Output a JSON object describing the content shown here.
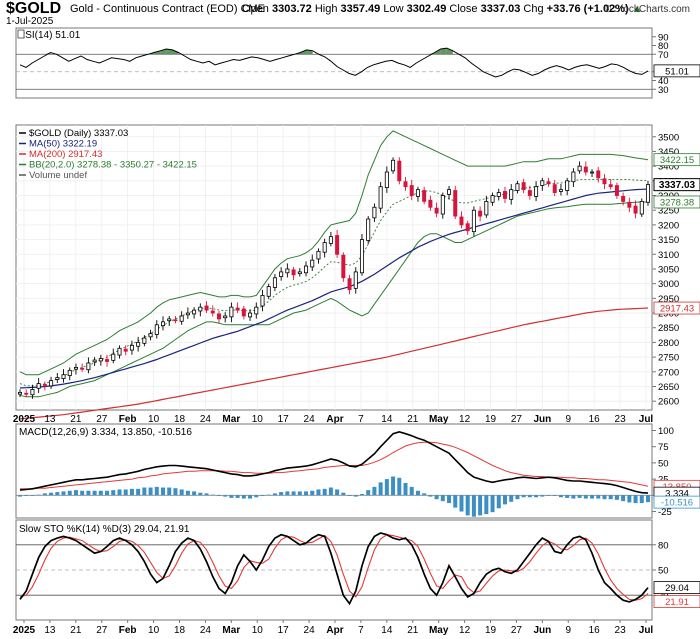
{
  "header": {
    "ticker": "$GOLD",
    "description": "Gold - Continuous Contract (EOD) CME",
    "date": "1-Jul-2025",
    "brand": "© StockCharts.com",
    "open_label": "Open",
    "open": "3303.72",
    "high_label": "High",
    "high": "3357.49",
    "low_label": "Low",
    "low": "3302.49",
    "close_label": "Close",
    "close": "3337.03",
    "chg_label": "Chg",
    "chg": "+33.76 (+1.02%)",
    "chg_arrow": "▲"
  },
  "colors": {
    "up_candle": "#000000",
    "down_candle": "#d8143c",
    "ma50": "#1a237e",
    "ma200": "#d32f2f",
    "bollinger": "#2e7d32",
    "macd_hist": "#3b8fc4",
    "stoch_k": "#000000",
    "stoch_d": "#e53935",
    "rsi_fill": "#3f7d3f"
  },
  "chart_data": [
    {
      "type": "line",
      "panel": "rsi",
      "title": "RSI(14) 51.01",
      "current": 51.01,
      "ylim": [
        20,
        100
      ],
      "levels": [
        70,
        30
      ],
      "tick_labels": [
        "90",
        "80",
        "70",
        "50",
        "40",
        "30"
      ],
      "values": [
        58,
        55,
        60,
        64,
        68,
        72,
        70,
        66,
        62,
        65,
        68,
        64,
        62,
        60,
        63,
        66,
        65,
        64,
        62,
        66,
        68,
        70,
        72,
        74,
        76,
        75,
        72,
        68,
        64,
        62,
        60,
        62,
        58,
        60,
        62,
        64,
        63,
        65,
        67,
        66,
        64,
        62,
        64,
        66,
        68,
        70,
        72,
        75,
        74,
        70,
        67,
        62,
        56,
        52,
        48,
        46,
        50,
        55,
        58,
        60,
        62,
        63,
        60,
        58,
        55,
        60,
        64,
        68,
        72,
        76,
        77,
        74,
        70,
        66,
        60,
        55,
        50,
        47,
        44,
        46,
        50,
        53,
        52,
        49,
        46,
        48,
        52,
        55,
        57,
        55,
        52,
        55,
        57,
        58,
        56,
        54,
        56,
        59,
        58,
        55,
        51,
        48,
        47,
        51.01
      ]
    },
    {
      "type": "line",
      "panel": "price",
      "title": "$GOLD (Daily) 3337.03",
      "legend": [
        "$GOLD (Daily) 3337.03",
        "MA(50) 3322.19",
        "MA(200) 2917.43",
        "BB(20,2.0) 3278.38 - 3350.27 - 3422.15",
        "Volume undef"
      ],
      "ylim": [
        2570,
        3540
      ],
      "y_tick_labels": [
        "3500",
        "3450",
        "3400",
        "3350",
        "3300",
        "3250",
        "3200",
        "3150",
        "3100",
        "3050",
        "3000",
        "2950",
        "2900",
        "2850",
        "2800",
        "2750",
        "2700",
        "2650",
        "2600"
      ],
      "badges": {
        "bb_upper": "3422.15",
        "close": "3337.03",
        "bb_lower": "3278.38",
        "ma200": "2917.43"
      },
      "close": [
        2630,
        2625,
        2640,
        2660,
        2655,
        2670,
        2680,
        2690,
        2705,
        2715,
        2710,
        2730,
        2740,
        2745,
        2735,
        2760,
        2780,
        2770,
        2790,
        2800,
        2815,
        2830,
        2860,
        2870,
        2880,
        2875,
        2890,
        2900,
        2910,
        2920,
        2910,
        2900,
        2880,
        2890,
        2920,
        2910,
        2890,
        2900,
        2920,
        2960,
        2990,
        3020,
        3040,
        3050,
        3030,
        3040,
        3060,
        3080,
        3110,
        3140,
        3160,
        3100,
        3020,
        2980,
        3040,
        3150,
        3220,
        3260,
        3330,
        3380,
        3420,
        3350,
        3330,
        3300,
        3320,
        3280,
        3260,
        3240,
        3300,
        3320,
        3230,
        3200,
        3180,
        3250,
        3230,
        3280,
        3300,
        3310,
        3290,
        3320,
        3340,
        3320,
        3300,
        3330,
        3350,
        3340,
        3310,
        3320,
        3350,
        3380,
        3400,
        3380,
        3380,
        3360,
        3340,
        3330,
        3300,
        3280,
        3260,
        3240,
        3280,
        3337
      ],
      "ma50": [
        2645,
        2646,
        2647,
        2648,
        2650,
        2652,
        2655,
        2658,
        2662,
        2666,
        2670,
        2675,
        2680,
        2686,
        2692,
        2698,
        2704,
        2710,
        2716,
        2722,
        2728,
        2735,
        2742,
        2750,
        2758,
        2766,
        2774,
        2782,
        2790,
        2798,
        2806,
        2814,
        2820,
        2826,
        2832,
        2838,
        2846,
        2854,
        2862,
        2870,
        2880,
        2890,
        2900,
        2910,
        2918,
        2926,
        2934,
        2942,
        2952,
        2962,
        2972,
        2978,
        2984,
        2990,
        2998,
        3008,
        3020,
        3032,
        3046,
        3060,
        3074,
        3088,
        3100,
        3112,
        3124,
        3134,
        3144,
        3152,
        3160,
        3168,
        3174,
        3180,
        3186,
        3192,
        3198,
        3204,
        3210,
        3216,
        3222,
        3228,
        3234,
        3240,
        3246,
        3252,
        3258,
        3264,
        3270,
        3276,
        3282,
        3288,
        3294,
        3300,
        3304,
        3308,
        3310,
        3312,
        3314,
        3316,
        3318,
        3320,
        3321,
        3322
      ],
      "ma200": [
        2540,
        2542,
        2544,
        2546,
        2548,
        2550,
        2552,
        2554,
        2557,
        2560,
        2563,
        2566,
        2569,
        2572,
        2575,
        2578,
        2581,
        2584,
        2587,
        2590,
        2594,
        2598,
        2602,
        2606,
        2610,
        2614,
        2618,
        2622,
        2626,
        2630,
        2634,
        2638,
        2642,
        2646,
        2650,
        2654,
        2658,
        2662,
        2666,
        2670,
        2674,
        2678,
        2682,
        2686,
        2690,
        2694,
        2698,
        2702,
        2706,
        2710,
        2714,
        2718,
        2722,
        2726,
        2730,
        2734,
        2738,
        2742,
        2746,
        2750,
        2755,
        2760,
        2765,
        2770,
        2775,
        2780,
        2785,
        2790,
        2795,
        2800,
        2805,
        2810,
        2815,
        2820,
        2825,
        2830,
        2835,
        2840,
        2845,
        2850,
        2855,
        2860,
        2864,
        2868,
        2872,
        2876,
        2880,
        2884,
        2888,
        2892,
        2896,
        2900,
        2903,
        2906,
        2908,
        2910,
        2912,
        2913,
        2914,
        2915,
        2916,
        2917
      ],
      "bb_upper": [
        2700,
        2690,
        2690,
        2690,
        2700,
        2710,
        2720,
        2730,
        2745,
        2760,
        2770,
        2780,
        2790,
        2800,
        2810,
        2825,
        2840,
        2850,
        2860,
        2870,
        2885,
        2900,
        2920,
        2935,
        2945,
        2950,
        2955,
        2960,
        2965,
        2970,
        2965,
        2960,
        2955,
        2955,
        2960,
        2960,
        2955,
        2955,
        2960,
        2990,
        3020,
        3050,
        3070,
        3085,
        3090,
        3095,
        3105,
        3120,
        3145,
        3175,
        3200,
        3205,
        3210,
        3215,
        3240,
        3300,
        3370,
        3420,
        3470,
        3500,
        3520,
        3510,
        3500,
        3490,
        3480,
        3470,
        3460,
        3450,
        3440,
        3430,
        3420,
        3410,
        3400,
        3400,
        3400,
        3400,
        3400,
        3400,
        3400,
        3405,
        3410,
        3415,
        3415,
        3415,
        3420,
        3425,
        3425,
        3425,
        3430,
        3435,
        3440,
        3440,
        3440,
        3440,
        3440,
        3440,
        3438,
        3436,
        3432,
        3428,
        3425,
        3422
      ],
      "bb_lower": [
        2620,
        2615,
        2615,
        2615,
        2620,
        2625,
        2630,
        2640,
        2650,
        2655,
        2660,
        2665,
        2670,
        2680,
        2690,
        2700,
        2710,
        2720,
        2730,
        2740,
        2750,
        2760,
        2770,
        2780,
        2795,
        2810,
        2825,
        2840,
        2850,
        2860,
        2870,
        2870,
        2865,
        2860,
        2860,
        2860,
        2860,
        2860,
        2860,
        2860,
        2860,
        2870,
        2880,
        2890,
        2900,
        2905,
        2910,
        2920,
        2930,
        2940,
        2950,
        2940,
        2925,
        2910,
        2900,
        2890,
        2900,
        2930,
        2960,
        2990,
        3020,
        3050,
        3080,
        3110,
        3140,
        3160,
        3170,
        3170,
        3160,
        3150,
        3140,
        3140,
        3150,
        3160,
        3170,
        3180,
        3190,
        3200,
        3210,
        3220,
        3230,
        3235,
        3240,
        3245,
        3250,
        3255,
        3258,
        3260,
        3262,
        3265,
        3268,
        3270,
        3270,
        3270,
        3270,
        3270,
        3272,
        3274,
        3276,
        3277,
        3278,
        3278
      ]
    },
    {
      "type": "line",
      "panel": "macd",
      "title": "MACD(12,26,9) 3.334, 13.850, -10.516",
      "ylim": [
        -35,
        110
      ],
      "y_tick_labels": [
        "100",
        "75",
        "50",
        "25",
        "0",
        "-25"
      ],
      "badges": {
        "signal": "13.850",
        "macd": "3.334",
        "hist": "-10.516"
      },
      "macd": [
        8,
        9,
        10,
        12,
        14,
        16,
        18,
        20,
        22,
        24,
        24,
        25,
        26,
        27,
        28,
        30,
        32,
        33,
        35,
        37,
        40,
        42,
        44,
        45,
        46,
        46,
        45,
        44,
        43,
        42,
        41,
        39,
        37,
        35,
        33,
        32,
        30,
        30,
        31,
        33,
        35,
        38,
        40,
        42,
        43,
        44,
        45,
        47,
        50,
        53,
        56,
        54,
        50,
        45,
        44,
        48,
        56,
        64,
        75,
        85,
        95,
        98,
        95,
        92,
        88,
        85,
        80,
        75,
        70,
        65,
        55,
        45,
        35,
        28,
        25,
        22,
        20,
        22,
        24,
        25,
        27,
        28,
        27,
        26,
        27,
        28,
        27,
        25,
        23,
        22,
        22,
        21,
        20,
        19,
        18,
        17,
        15,
        12,
        9,
        6,
        4,
        3.334
      ],
      "signal": [
        10,
        10,
        10,
        11,
        11,
        12,
        13,
        14,
        15,
        16,
        17,
        18,
        19,
        20,
        21,
        22,
        23,
        24,
        25,
        27,
        28,
        30,
        31,
        33,
        34,
        35,
        36,
        37,
        37,
        38,
        38,
        38,
        38,
        37,
        37,
        36,
        35,
        35,
        34,
        34,
        34,
        35,
        35,
        36,
        37,
        38,
        39,
        40,
        41,
        43,
        44,
        45,
        46,
        46,
        46,
        46,
        48,
        51,
        55,
        60,
        66,
        71,
        76,
        79,
        81,
        82,
        82,
        81,
        79,
        77,
        74,
        70,
        66,
        61,
        56,
        51,
        46,
        42,
        38,
        35,
        33,
        31,
        30,
        29,
        29,
        28,
        28,
        28,
        27,
        27,
        26,
        26,
        25,
        24,
        24,
        23,
        22,
        21,
        20,
        18,
        16,
        13.85
      ],
      "hist": [
        -2,
        -1,
        0,
        1,
        3,
        4,
        5,
        6,
        7,
        8,
        7,
        7,
        7,
        7,
        7,
        8,
        9,
        9,
        10,
        10,
        12,
        12,
        13,
        12,
        12,
        11,
        9,
        7,
        6,
        4,
        3,
        1,
        -1,
        -2,
        -4,
        -4,
        -5,
        -5,
        -3,
        -1,
        1,
        3,
        5,
        6,
        6,
        6,
        6,
        7,
        9,
        10,
        12,
        9,
        4,
        -1,
        -2,
        2,
        8,
        13,
        20,
        25,
        29,
        27,
        19,
        13,
        7,
        3,
        -2,
        -6,
        -9,
        -12,
        -19,
        -25,
        -31,
        -33,
        -31,
        -29,
        -26,
        -20,
        -14,
        -10,
        -6,
        -3,
        -3,
        -3,
        -2,
        0,
        -1,
        -3,
        -4,
        -5,
        -4,
        -5,
        -5,
        -5,
        -6,
        -6,
        -7,
        -9,
        -11,
        -12,
        -12,
        -10.516
      ]
    },
    {
      "type": "line",
      "panel": "stochastic",
      "title": "Slow STO %K(14) %D(3) 29.04, 21.91",
      "ylim": [
        0,
        100
      ],
      "y_tick_labels": [
        "80",
        "50",
        "20"
      ],
      "badges": {
        "k": "29.04",
        "d": "21.91"
      },
      "k": [
        15,
        25,
        45,
        65,
        78,
        85,
        88,
        90,
        88,
        85,
        80,
        75,
        70,
        72,
        78,
        85,
        88,
        85,
        80,
        72,
        60,
        45,
        35,
        40,
        55,
        72,
        82,
        88,
        85,
        75,
        60,
        42,
        28,
        22,
        35,
        55,
        68,
        60,
        50,
        62,
        78,
        88,
        92,
        90,
        85,
        80,
        82,
        88,
        92,
        90,
        70,
        45,
        20,
        10,
        25,
        55,
        78,
        90,
        94,
        92,
        88,
        86,
        88,
        80,
        65,
        45,
        28,
        20,
        35,
        55,
        42,
        28,
        18,
        22,
        35,
        45,
        50,
        52,
        48,
        46,
        50,
        60,
        70,
        80,
        88,
        84,
        72,
        70,
        80,
        88,
        90,
        86,
        70,
        50,
        35,
        28,
        20,
        14,
        12,
        15,
        20,
        29.04
      ],
      "d": [
        18,
        20,
        30,
        45,
        62,
        76,
        84,
        88,
        89,
        87,
        85,
        80,
        75,
        72,
        73,
        78,
        84,
        86,
        84,
        79,
        71,
        59,
        47,
        40,
        43,
        55,
        70,
        81,
        85,
        83,
        74,
        59,
        43,
        31,
        28,
        37,
        53,
        61,
        59,
        58,
        63,
        76,
        86,
        90,
        89,
        85,
        82,
        83,
        87,
        91,
        84,
        68,
        45,
        25,
        18,
        30,
        53,
        74,
        87,
        92,
        91,
        89,
        87,
        85,
        78,
        63,
        46,
        31,
        28,
        37,
        44,
        42,
        29,
        23,
        25,
        34,
        43,
        49,
        50,
        49,
        48,
        52,
        60,
        70,
        79,
        84,
        81,
        75,
        74,
        79,
        86,
        88,
        82,
        69,
        52,
        38,
        28,
        21,
        15,
        14,
        16,
        21.91
      ]
    }
  ],
  "x_axis": {
    "labels": [
      "2025",
      "13",
      "21",
      "27",
      "Feb",
      "10",
      "18",
      "24",
      "Mar",
      "10",
      "17",
      "24",
      "Apr",
      "7",
      "14",
      "21",
      "May",
      "12",
      "19",
      "27",
      "Jun",
      "9",
      "16",
      "23",
      "Jul"
    ]
  }
}
